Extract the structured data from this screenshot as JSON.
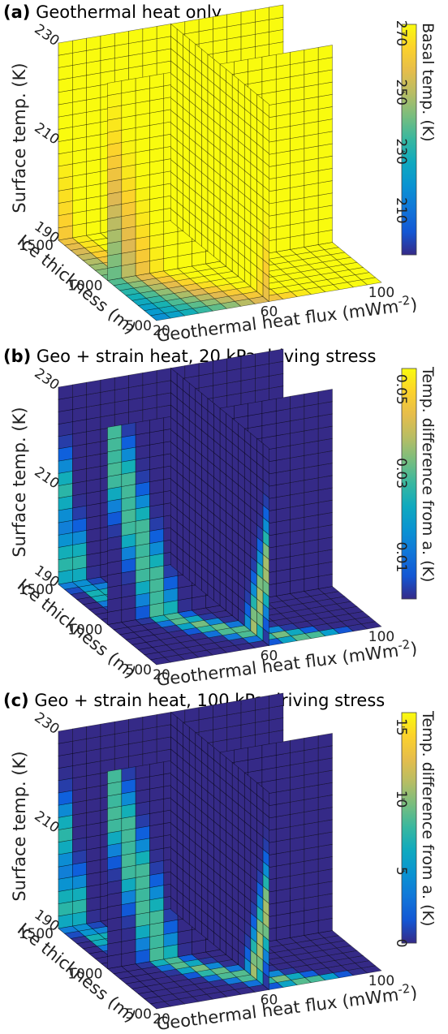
{
  "chart_data": [
    {
      "type": "surface3d",
      "panel_label": "(a)",
      "title": "Geothermal heat only",
      "xlabel": "Geothermal heat flux (mWm",
      "xlabel_exp": "-2",
      "xlabel_end": ")",
      "ylabel": "Ice thickness (m)",
      "zlabel": "Surface temp. (K)",
      "xticks": [
        "20",
        "60",
        "100"
      ],
      "yticks": [
        "500",
        "1000",
        "1500"
      ],
      "zticks": [
        "190",
        "210",
        "230"
      ],
      "xlim": [
        20,
        100
      ],
      "ylim": [
        500,
        1500
      ],
      "zlim": [
        190,
        230
      ],
      "slices": {
        "x": 60,
        "y": 1000,
        "z": 190
      },
      "colorbar": {
        "label": "Basal temp. (K)",
        "ticks": [
          "210",
          "230",
          "250",
          "270"
        ],
        "range": [
          195,
          273
        ],
        "colormap": "parula"
      },
      "field": "basal_temperature"
    },
    {
      "type": "surface3d",
      "panel_label": "(b)",
      "title": "Geo + strain heat, 20 kPa driving stress",
      "xlabel": "Geothermal heat flux (mWm",
      "xlabel_exp": "-2",
      "xlabel_end": ")",
      "ylabel": "Ice thickness (m)",
      "zlabel": "Surface temp. (K)",
      "xticks": [
        "20",
        "60",
        "100"
      ],
      "yticks": [
        "500",
        "1000",
        "1500"
      ],
      "zticks": [
        "190",
        "210",
        "230"
      ],
      "xlim": [
        20,
        100
      ],
      "ylim": [
        500,
        1500
      ],
      "zlim": [
        190,
        230
      ],
      "slices": {
        "x": 60,
        "y": 1000,
        "z": 190
      },
      "colorbar": {
        "label": "Temp. difference from a. (K)",
        "ticks": [
          "0.01",
          "0.03",
          "0.05"
        ],
        "range": [
          0,
          0.055
        ],
        "colormap": "parula"
      },
      "field": "difference_20kPa",
      "peak": 0.055
    },
    {
      "type": "surface3d",
      "panel_label": "(c)",
      "title": "Geo + strain heat, 100 kPa driving stress",
      "xlabel": "Geothermal heat flux (mWm",
      "xlabel_exp": "-2",
      "xlabel_end": ")",
      "ylabel": "Ice thickness (m)",
      "zlabel": "Surface temp. (K)",
      "xticks": [
        "20",
        "60",
        "100"
      ],
      "yticks": [
        "500",
        "1000",
        "1500"
      ],
      "zticks": [
        "190",
        "210",
        "230"
      ],
      "xlim": [
        20,
        100
      ],
      "ylim": [
        500,
        1500
      ],
      "zlim": [
        190,
        230
      ],
      "slices": {
        "x": 60,
        "y": 1000,
        "z": 190
      },
      "colorbar": {
        "label": "Temp. difference from a. (K)",
        "ticks": [
          "0",
          "5",
          "10",
          "15"
        ],
        "range": [
          0,
          16
        ],
        "colormap": "parula"
      },
      "field": "difference_100kPa",
      "peak": 16
    }
  ]
}
